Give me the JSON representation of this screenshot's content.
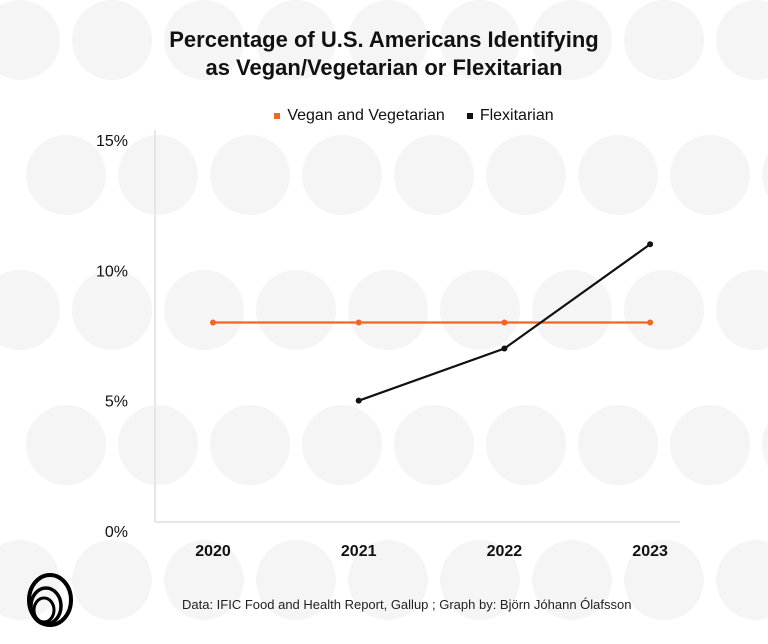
{
  "chart_data": {
    "type": "line",
    "title": "Percentage of U.S. Americans Identifying as Vegan/Vegetarian or Flexitarian",
    "title_lines": [
      "Percentage of U.S. Americans Identifying",
      "as Vegan/Vegetarian or Flexitarian"
    ],
    "categories": [
      "2020",
      "2021",
      "2022",
      "2023"
    ],
    "y_ticks": [
      "0%",
      "5%",
      "10%",
      "15%"
    ],
    "y_tick_values": [
      0,
      5,
      10,
      15
    ],
    "ylim": [
      0,
      15
    ],
    "grid": false,
    "legend_placement": "top-center",
    "series": [
      {
        "name": "Vegan and Vegetarian",
        "color": "#f26522",
        "values": [
          8,
          8,
          8,
          8
        ]
      },
      {
        "name": "Flexitarian",
        "color": "#111111",
        "values": [
          null,
          5,
          7,
          11
        ]
      }
    ]
  },
  "footer": "Data: IFIC Food and Health Report, Gallup ; Graph by: Björn Jóhann Ólafsson",
  "logo_icon": "concentric-rings-logo"
}
